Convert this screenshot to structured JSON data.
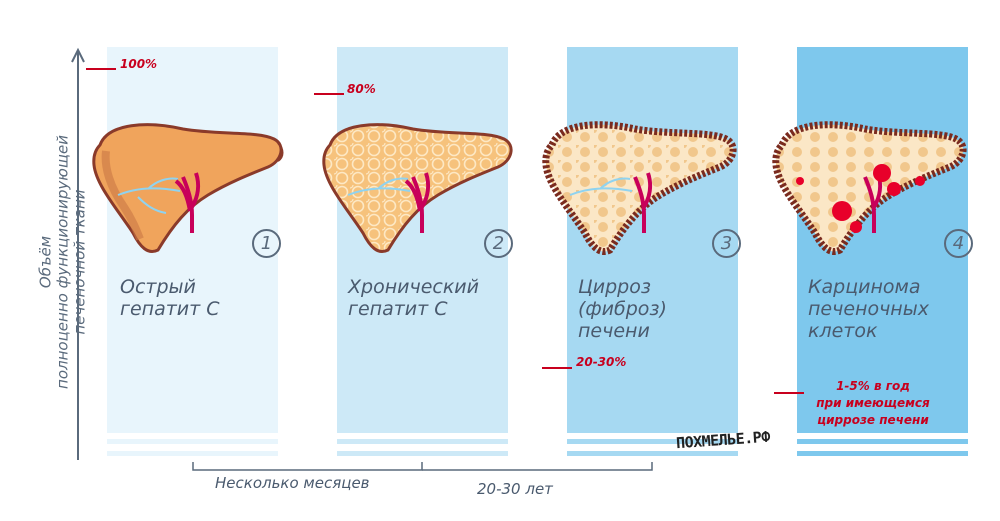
{
  "y_axis_label": "Объём\nполноценно функционирующей\nпеченочной ткани",
  "stages": [
    {
      "number": "1",
      "label": "Острый\nгепатит С",
      "color": "#e8f5fc"
    },
    {
      "number": "2",
      "label": "Хронический\nгепатит С",
      "color": "#cde9f7"
    },
    {
      "number": "3",
      "label": "Цирроз\n(фиброз)\nпечени",
      "color": "#a6d9f2"
    },
    {
      "number": "4",
      "label": "Карцинома\nпеченочных\nклеток",
      "color": "#7ec8ed"
    }
  ],
  "percent_markers": [
    "100%",
    "80%",
    "20-30%"
  ],
  "carcinoma_note": "1-5% в год\nпри имеющемся\nциррозе печени",
  "timeline": {
    "segment_1": "Несколько месяцев",
    "segment_2": "20-30 лет"
  },
  "watermark": "ПОХМЕЛЬЕ.РФ",
  "colors": {
    "accent_red": "#c8001e",
    "liver_healthy": "#f0a45c",
    "liver_outline": "#8a3a2a",
    "vessel": "#c8005a",
    "bile": "#8fd3f0",
    "text": "#4a5a6e"
  }
}
